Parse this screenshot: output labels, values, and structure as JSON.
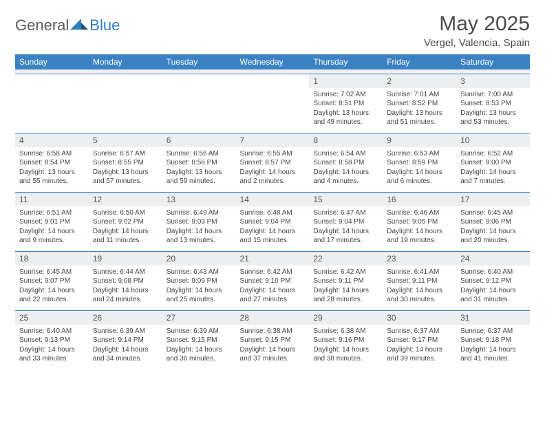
{
  "logo": {
    "general": "General",
    "blue": "Blue"
  },
  "title": "May 2025",
  "location": "Vergel, Valencia, Spain",
  "colors": {
    "header_bg": "#3a82c4",
    "header_fg": "#ffffff",
    "daynum_bg": "#eceef0",
    "row_divider": "#3a82c4",
    "logo_blue": "#2f7fbf",
    "logo_dark": "#1b4f7a"
  },
  "day_names": [
    "Sunday",
    "Monday",
    "Tuesday",
    "Wednesday",
    "Thursday",
    "Friday",
    "Saturday"
  ],
  "weeks": [
    [
      null,
      null,
      null,
      null,
      {
        "n": "1",
        "sr": "7:02 AM",
        "ss": "8:51 PM",
        "dl": "13 hours and 49 minutes."
      },
      {
        "n": "2",
        "sr": "7:01 AM",
        "ss": "8:52 PM",
        "dl": "13 hours and 51 minutes."
      },
      {
        "n": "3",
        "sr": "7:00 AM",
        "ss": "8:53 PM",
        "dl": "13 hours and 53 minutes."
      }
    ],
    [
      {
        "n": "4",
        "sr": "6:58 AM",
        "ss": "8:54 PM",
        "dl": "13 hours and 55 minutes."
      },
      {
        "n": "5",
        "sr": "6:57 AM",
        "ss": "8:55 PM",
        "dl": "13 hours and 57 minutes."
      },
      {
        "n": "6",
        "sr": "6:56 AM",
        "ss": "8:56 PM",
        "dl": "13 hours and 59 minutes."
      },
      {
        "n": "7",
        "sr": "6:55 AM",
        "ss": "8:57 PM",
        "dl": "14 hours and 2 minutes."
      },
      {
        "n": "8",
        "sr": "6:54 AM",
        "ss": "8:58 PM",
        "dl": "14 hours and 4 minutes."
      },
      {
        "n": "9",
        "sr": "6:53 AM",
        "ss": "8:59 PM",
        "dl": "14 hours and 6 minutes."
      },
      {
        "n": "10",
        "sr": "6:52 AM",
        "ss": "9:00 PM",
        "dl": "14 hours and 7 minutes."
      }
    ],
    [
      {
        "n": "11",
        "sr": "6:51 AM",
        "ss": "9:01 PM",
        "dl": "14 hours and 9 minutes."
      },
      {
        "n": "12",
        "sr": "6:50 AM",
        "ss": "9:02 PM",
        "dl": "14 hours and 11 minutes."
      },
      {
        "n": "13",
        "sr": "6:49 AM",
        "ss": "9:03 PM",
        "dl": "14 hours and 13 minutes."
      },
      {
        "n": "14",
        "sr": "6:48 AM",
        "ss": "9:04 PM",
        "dl": "14 hours and 15 minutes."
      },
      {
        "n": "15",
        "sr": "6:47 AM",
        "ss": "9:04 PM",
        "dl": "14 hours and 17 minutes."
      },
      {
        "n": "16",
        "sr": "6:46 AM",
        "ss": "9:05 PM",
        "dl": "14 hours and 19 minutes."
      },
      {
        "n": "17",
        "sr": "6:45 AM",
        "ss": "9:06 PM",
        "dl": "14 hours and 20 minutes."
      }
    ],
    [
      {
        "n": "18",
        "sr": "6:45 AM",
        "ss": "9:07 PM",
        "dl": "14 hours and 22 minutes."
      },
      {
        "n": "19",
        "sr": "6:44 AM",
        "ss": "9:08 PM",
        "dl": "14 hours and 24 minutes."
      },
      {
        "n": "20",
        "sr": "6:43 AM",
        "ss": "9:09 PM",
        "dl": "14 hours and 25 minutes."
      },
      {
        "n": "21",
        "sr": "6:42 AM",
        "ss": "9:10 PM",
        "dl": "14 hours and 27 minutes."
      },
      {
        "n": "22",
        "sr": "6:42 AM",
        "ss": "9:11 PM",
        "dl": "14 hours and 28 minutes."
      },
      {
        "n": "23",
        "sr": "6:41 AM",
        "ss": "9:11 PM",
        "dl": "14 hours and 30 minutes."
      },
      {
        "n": "24",
        "sr": "6:40 AM",
        "ss": "9:12 PM",
        "dl": "14 hours and 31 minutes."
      }
    ],
    [
      {
        "n": "25",
        "sr": "6:40 AM",
        "ss": "9:13 PM",
        "dl": "14 hours and 33 minutes."
      },
      {
        "n": "26",
        "sr": "6:39 AM",
        "ss": "9:14 PM",
        "dl": "14 hours and 34 minutes."
      },
      {
        "n": "27",
        "sr": "6:39 AM",
        "ss": "9:15 PM",
        "dl": "14 hours and 36 minutes."
      },
      {
        "n": "28",
        "sr": "6:38 AM",
        "ss": "9:15 PM",
        "dl": "14 hours and 37 minutes."
      },
      {
        "n": "29",
        "sr": "6:38 AM",
        "ss": "9:16 PM",
        "dl": "14 hours and 38 minutes."
      },
      {
        "n": "30",
        "sr": "6:37 AM",
        "ss": "9:17 PM",
        "dl": "14 hours and 39 minutes."
      },
      {
        "n": "31",
        "sr": "6:37 AM",
        "ss": "9:18 PM",
        "dl": "14 hours and 41 minutes."
      }
    ]
  ],
  "labels": {
    "sunrise": "Sunrise: ",
    "sunset": "Sunset: ",
    "daylight": "Daylight: "
  }
}
